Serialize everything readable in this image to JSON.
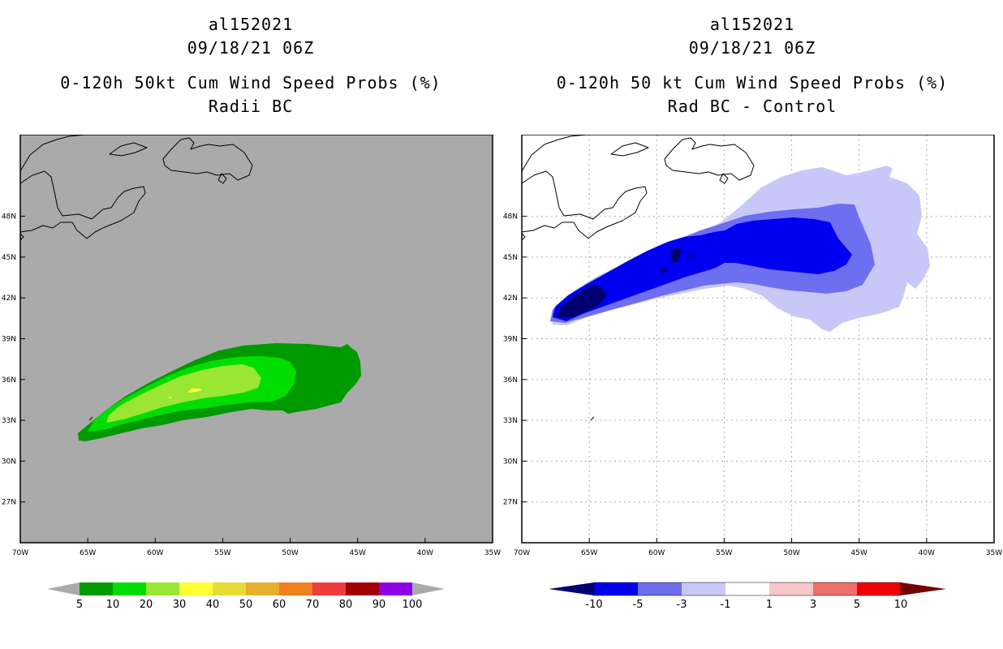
{
  "left_panel": {
    "title_storm": "al152021",
    "title_time": "09/18/21 06Z",
    "title_product": "0-120h 50kt Cum Wind Speed Probs (%)",
    "title_run": "Radii BC",
    "background_color": "#aaaaaa",
    "colorbar": {
      "labels": [
        "5",
        "10",
        "20",
        "30",
        "40",
        "50",
        "60",
        "70",
        "80",
        "90",
        "100"
      ],
      "colors": [
        "#009900",
        "#00dd00",
        "#99e633",
        "#ffff33",
        "#e6dc33",
        "#e6af2e",
        "#f07f20",
        "#f03c3c",
        "#a00000",
        "#8c00e6"
      ],
      "end_color": "#aaaaaa"
    },
    "contour_levels": {
      "5": "#009900",
      "10": "#00dd00",
      "20": "#99e633",
      "30": "#ffff33"
    }
  },
  "right_panel": {
    "title_storm": "al152021",
    "title_time": "09/18/21 06Z",
    "title_product": "0-120h 50 kt Cum Wind Speed Probs (%)",
    "title_run": "Rad BC - Control",
    "background_color": "#ffffff",
    "colorbar": {
      "labels": [
        "-10",
        "-5",
        "-3",
        "-1",
        "1",
        "3",
        "5",
        "10"
      ],
      "colors": [
        "#000073",
        "#0000f0",
        "#6e6ef0",
        "#c8c8f8",
        "#ffffff",
        "#f8c8c8",
        "#f06e6e",
        "#f00000",
        "#730000"
      ]
    },
    "contour_levels": {
      "-1": "#c8c8f8",
      "-3": "#6e6ef0",
      "-5": "#0000f0",
      "-10": "#000073"
    }
  },
  "axes": {
    "lon_labels": [
      "70W",
      "65W",
      "60W",
      "55W",
      "50W",
      "45W",
      "40W",
      "35W"
    ],
    "lat_labels": [
      "27N",
      "30N",
      "33N",
      "36N",
      "39N",
      "42N",
      "45N",
      "48N"
    ]
  }
}
